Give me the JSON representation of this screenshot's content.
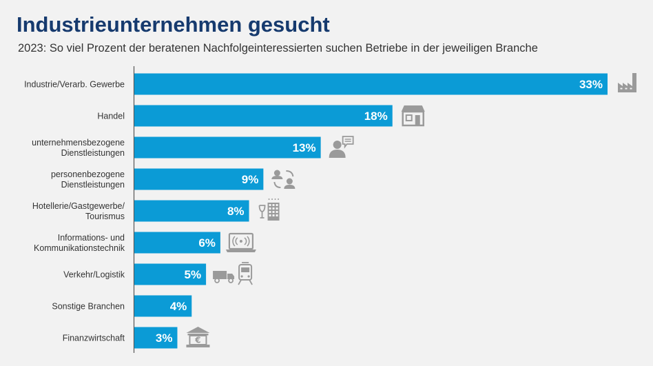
{
  "chart_data": {
    "type": "bar",
    "orientation": "horizontal",
    "title": "Industrieunternehmen gesucht",
    "subtitle": "2023: So viel Prozent der beratenen Nachfolgeinteressierten suchen Betriebe in der jeweiligen Branche",
    "unit": "%",
    "xlim": [
      0,
      33
    ],
    "categories": [
      [
        "Industrie/Verarb. Gewerbe"
      ],
      [
        "Handel"
      ],
      [
        "unternehmensbezogene",
        "Dienstleistungen"
      ],
      [
        "personenbezogene",
        "Dienstleistungen"
      ],
      [
        "Hotellerie/Gastgewerbe/",
        "Tourismus"
      ],
      [
        "Informations- und",
        "Kommunikationstechnik"
      ],
      [
        "Verkehr/Logistik"
      ],
      [
        "Sonstige Branchen"
      ],
      [
        "Finanzwirtschaft"
      ]
    ],
    "values": [
      33,
      18,
      13,
      9,
      8,
      6,
      5,
      4,
      3
    ],
    "value_labels": [
      "33%",
      "18%",
      "13%",
      "9%",
      "8%",
      "6%",
      "5%",
      "4%",
      "3%"
    ],
    "icons": [
      "factory-icon",
      "store-icon",
      "consultant-icon",
      "people-exchange-icon",
      "hotel-icon",
      "laptop-wifi-icon",
      "truck-train-icon",
      "",
      "bank-euro-icon"
    ]
  },
  "colors": {
    "bar": "#0b9bd6",
    "title": "#163a6e",
    "axis": "#555555",
    "icon": "#9a9a9a",
    "background": "#f2f2f2"
  }
}
